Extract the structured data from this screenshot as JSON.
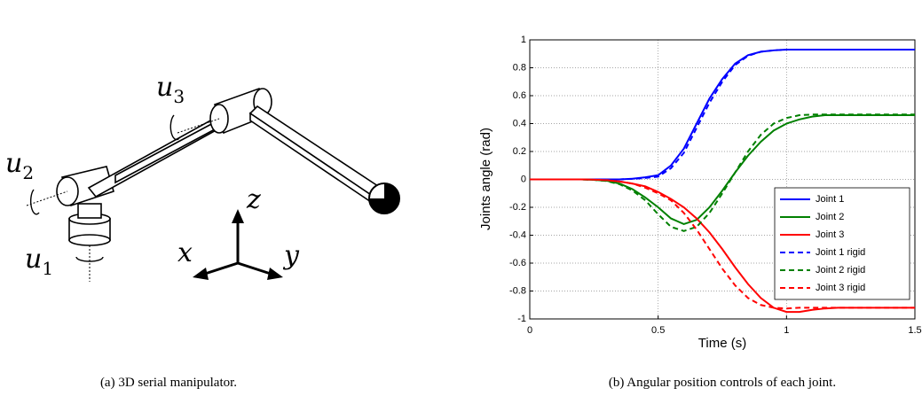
{
  "panel_a": {
    "labels": [
      {
        "symbol": "u",
        "subscript": "2"
      },
      {
        "symbol": "u",
        "subscript": "3"
      },
      {
        "symbol": "u",
        "subscript": "1"
      },
      {
        "symbol": "z"
      },
      {
        "symbol": "x"
      },
      {
        "symbol": "y"
      }
    ],
    "caption": "(a)  3D serial manipulator."
  },
  "chart_data": {
    "type": "line",
    "xlabel": "Time (s)",
    "ylabel": "Joints angle (rad)",
    "caption": "(b)  Angular position controls of each joint.",
    "x": [
      0,
      0.05,
      0.1,
      0.15,
      0.2,
      0.25,
      0.3,
      0.35,
      0.4,
      0.45,
      0.5,
      0.55,
      0.6,
      0.65,
      0.7,
      0.75,
      0.8,
      0.85,
      0.9,
      0.95,
      1,
      1.05,
      1.1,
      1.15,
      1.2,
      1.25,
      1.3,
      1.35,
      1.4,
      1.45,
      1.5
    ],
    "series": [
      {
        "name": "Joint 1",
        "color": "#0000ff",
        "dashed": false,
        "values": [
          0,
          0,
          0,
          0,
          0,
          0,
          0,
          0,
          0.005,
          0.015,
          0.03,
          0.1,
          0.22,
          0.4,
          0.58,
          0.72,
          0.83,
          0.89,
          0.915,
          0.925,
          0.93,
          0.93,
          0.93,
          0.93,
          0.93,
          0.93,
          0.93,
          0.93,
          0.93,
          0.93,
          0.93
        ]
      },
      {
        "name": "Joint 2",
        "color": "#008000",
        "dashed": false,
        "values": [
          0,
          0,
          0,
          0,
          0,
          -0.003,
          -0.01,
          -0.03,
          -0.07,
          -0.13,
          -0.2,
          -0.28,
          -0.32,
          -0.29,
          -0.2,
          -0.08,
          0.05,
          0.17,
          0.27,
          0.35,
          0.4,
          0.43,
          0.45,
          0.46,
          0.46,
          0.46,
          0.46,
          0.46,
          0.46,
          0.46,
          0.46
        ]
      },
      {
        "name": "Joint 3",
        "color": "#ff0000",
        "dashed": false,
        "values": [
          0,
          0,
          0,
          0,
          0,
          -0.002,
          -0.005,
          -0.015,
          -0.03,
          -0.05,
          -0.09,
          -0.14,
          -0.2,
          -0.28,
          -0.38,
          -0.5,
          -0.63,
          -0.75,
          -0.85,
          -0.92,
          -0.95,
          -0.95,
          -0.935,
          -0.925,
          -0.92,
          -0.92,
          -0.92,
          -0.92,
          -0.92,
          -0.92,
          -0.92
        ]
      },
      {
        "name": "Joint 1 rigid",
        "color": "#0000ff",
        "dashed": true,
        "values": [
          0,
          0,
          0,
          0,
          0,
          0,
          0,
          0,
          0.004,
          0.01,
          0.02,
          0.08,
          0.19,
          0.37,
          0.55,
          0.7,
          0.82,
          0.885,
          0.915,
          0.925,
          0.93,
          0.93,
          0.93,
          0.93,
          0.93,
          0.93,
          0.93,
          0.93,
          0.93,
          0.93,
          0.93
        ]
      },
      {
        "name": "Joint 2 rigid",
        "color": "#008000",
        "dashed": true,
        "values": [
          0,
          0,
          0,
          0,
          0,
          -0.003,
          -0.012,
          -0.035,
          -0.08,
          -0.15,
          -0.25,
          -0.34,
          -0.37,
          -0.34,
          -0.24,
          -0.1,
          0.05,
          0.2,
          0.32,
          0.4,
          0.44,
          0.46,
          0.465,
          0.465,
          0.465,
          0.465,
          0.465,
          0.465,
          0.465,
          0.465,
          0.465
        ]
      },
      {
        "name": "Joint 3 rigid",
        "color": "#ff0000",
        "dashed": true,
        "values": [
          0,
          0,
          0,
          0,
          0,
          -0.002,
          -0.006,
          -0.015,
          -0.03,
          -0.06,
          -0.1,
          -0.15,
          -0.24,
          -0.36,
          -0.5,
          -0.64,
          -0.76,
          -0.85,
          -0.9,
          -0.92,
          -0.925,
          -0.92,
          -0.92,
          -0.92,
          -0.92,
          -0.92,
          -0.92,
          -0.92,
          -0.92,
          -0.92,
          -0.92
        ]
      }
    ],
    "xlim": [
      0,
      1.5
    ],
    "ylim": [
      -1,
      1
    ],
    "xticks": [
      0,
      0.5,
      1,
      1.5
    ],
    "yticks": [
      -1,
      -0.8,
      -0.6,
      -0.4,
      -0.2,
      0,
      0.2,
      0.4,
      0.6,
      0.8,
      1
    ],
    "grid": true,
    "legend": "lower right"
  }
}
